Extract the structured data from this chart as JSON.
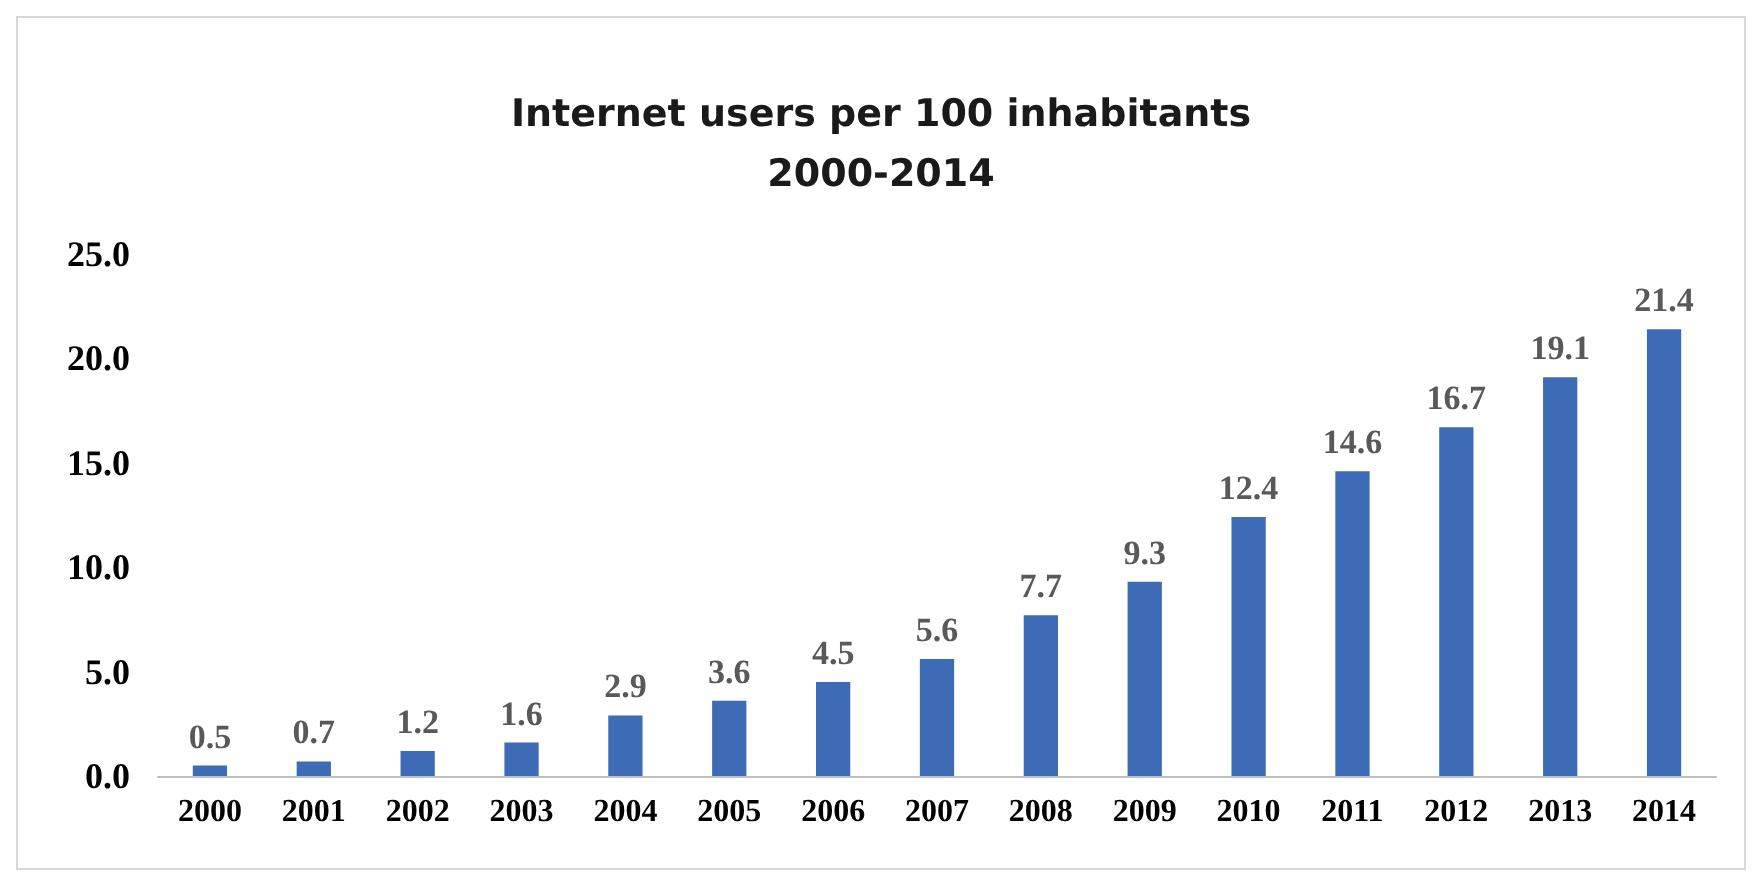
{
  "chart_data": {
    "type": "bar",
    "title": "Internet users per 100 inhabitants\n2000-2014",
    "categories": [
      "2000",
      "2001",
      "2002",
      "2003",
      "2004",
      "2005",
      "2006",
      "2007",
      "2008",
      "2009",
      "2010",
      "2011",
      "2012",
      "2013",
      "2014"
    ],
    "values": [
      0.5,
      0.7,
      1.2,
      1.6,
      2.9,
      3.6,
      4.5,
      5.6,
      7.7,
      9.3,
      12.4,
      14.6,
      16.7,
      19.1,
      21.4
    ],
    "color": "#3d6bb5",
    "ylim": [
      0,
      25
    ],
    "yticks": [
      {
        "value": 0,
        "label": "0.0"
      },
      {
        "value": 5,
        "label": "5.0"
      },
      {
        "value": 10,
        "label": "10.0"
      },
      {
        "value": 15,
        "label": "15.0"
      },
      {
        "value": 20,
        "label": "20.0"
      },
      {
        "value": 25,
        "label": "25.0"
      }
    ],
    "data_labels": true,
    "grid": false
  }
}
